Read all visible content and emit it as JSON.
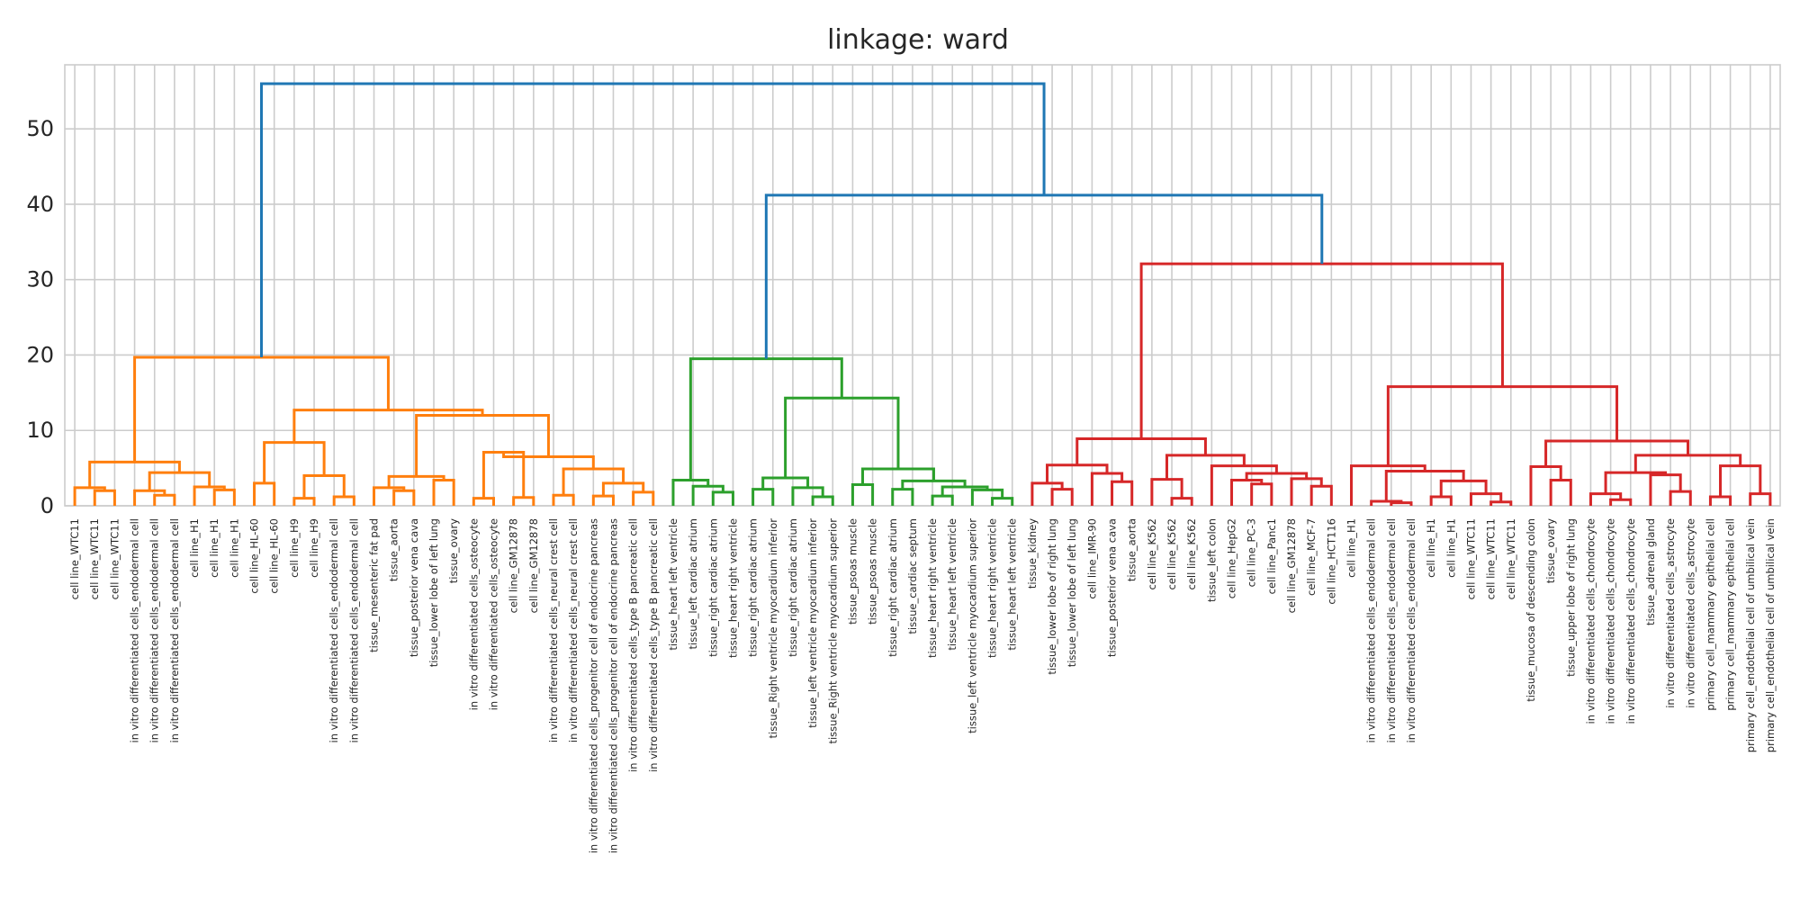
{
  "chart_data": {
    "type": "dendrogram",
    "title": "linkage: ward",
    "xlabel": "",
    "ylabel": "",
    "ylim": [
      0,
      58.5
    ],
    "yticks": [
      0,
      10,
      20,
      30,
      40,
      50
    ],
    "grid": true,
    "colors": {
      "orange": "#ff7f0e",
      "green": "#2ca02c",
      "red": "#d62728",
      "blue": "#1f77b4"
    },
    "leaves": [
      "cell line_WTC11",
      "cell line_WTC11",
      "cell line_WTC11",
      "in vitro differentiated cells_endodermal cell",
      "in vitro differentiated cells_endodermal cell",
      "in vitro differentiated cells_endodermal cell",
      "cell line_H1",
      "cell line_H1",
      "cell line_H1",
      "cell line_HL-60",
      "cell line_HL-60",
      "cell line_H9",
      "cell line_H9",
      "in vitro differentiated cells_endodermal cell",
      "in vitro differentiated cells_endodermal cell",
      "tissue_mesenteric fat pad",
      "tissue_aorta",
      "tissue_posterior vena cava",
      "tissue_lower lobe of left lung",
      "tissue_ovary",
      "in vitro differentiated cells_osteocyte",
      "in vitro differentiated cells_osteocyte",
      "cell line_GM12878",
      "cell line_GM12878",
      "in vitro differentiated cells_neural crest cell",
      "in vitro differentiated cells_neural crest cell",
      "in vitro differentiated cells_progenitor cell of endocrine pancreas",
      "in vitro differentiated cells_progenitor cell of endocrine pancreas",
      "in vitro differentiated cells_type B pancreatic cell",
      "in vitro differentiated cells_type B pancreatic cell",
      "tissue_heart left ventricle",
      "tissue_left cardiac atrium",
      "tissue_right cardiac atrium",
      "tissue_heart right ventricle",
      "tissue_right cardiac atrium",
      "tissue_Right ventricle myocardium inferior",
      "tissue_right cardiac atrium",
      "tissue_left ventricle myocardium inferior",
      "tissue_Right ventricle myocardium superior",
      "tissue_psoas muscle",
      "tissue_psoas muscle",
      "tissue_right cardiac atrium",
      "tissue_cardiac septum",
      "tissue_heart right ventricle",
      "tissue_heart left ventricle",
      "tissue_left ventricle myocardium superior",
      "tissue_heart right ventricle",
      "tissue_heart left ventricle",
      "tissue_kidney",
      "tissue_lower lobe of right lung",
      "tissue_lower lobe of left lung",
      "cell line_IMR-90",
      "tissue_posterior vena cava",
      "tissue_aorta",
      "cell line_K562",
      "cell line_K562",
      "cell line_K562",
      "tissue_left colon",
      "cell line_HepG2",
      "cell line_PC-3",
      "cell line_Panc1",
      "cell line_GM12878",
      "cell line_MCF-7",
      "cell line_HCT116",
      "cell line_H1",
      "in vitro differentiated cells_endodermal cell",
      "in vitro differentiated cells_endodermal cell",
      "in vitro differentiated cells_endodermal cell",
      "cell line_H1",
      "cell line_H1",
      "cell line_WTC11",
      "cell line_WTC11",
      "cell line_WTC11",
      "tissue_mucosa of descending colon",
      "tissue_ovary",
      "tissue_upper lobe of right lung",
      "in vitro differentiated cells_chondrocyte",
      "in vitro differentiated cells_chondrocyte",
      "in vitro differentiated cells_chondrocyte",
      "tissue_adrenal gland",
      "in vitro differentiated cells_astrocyte",
      "in vitro differentiated cells_astrocyte",
      "primary cell_mammary epithelial cell",
      "primary cell_mammary epithelial cell",
      "primary cell_endothelial cell of umbilical vein",
      "primary cell_endothelial cell of umbilical vein"
    ],
    "merges": [
      {
        "a": 1,
        "b": 2,
        "h": 2.0,
        "color": "orange"
      },
      {
        "a": 0,
        "b": "L0",
        "h": 2.4,
        "color": "orange"
      },
      {
        "a": 4,
        "b": 5,
        "h": 1.4,
        "color": "orange"
      },
      {
        "a": 3,
        "b": "L2",
        "h": 2.0,
        "color": "orange"
      },
      {
        "a": 7,
        "b": 8,
        "h": 2.1,
        "color": "orange"
      },
      {
        "a": 6,
        "b": "L4",
        "h": 2.5,
        "color": "orange"
      },
      {
        "a": "L3",
        "b": "L5",
        "h": 4.4,
        "color": "orange"
      },
      {
        "a": "L1",
        "b": "L6",
        "h": 5.8,
        "color": "orange"
      },
      {
        "a": 9,
        "b": 10,
        "h": 3.0,
        "color": "orange"
      },
      {
        "a": 11,
        "b": 12,
        "h": 1.0,
        "color": "orange"
      },
      {
        "a": 13,
        "b": 14,
        "h": 1.2,
        "color": "orange"
      },
      {
        "a": "L9",
        "b": "L10",
        "h": 4.0,
        "color": "orange"
      },
      {
        "a": "L8",
        "b": "L11",
        "h": 8.4,
        "color": "orange"
      },
      {
        "a": 16,
        "b": 17,
        "h": 2.0,
        "color": "orange"
      },
      {
        "a": 15,
        "b": "L13",
        "h": 2.4,
        "color": "orange"
      },
      {
        "a": 18,
        "b": 19,
        "h": 3.4,
        "color": "orange"
      },
      {
        "a": "L14",
        "b": "L15",
        "h": 3.9,
        "color": "orange"
      },
      {
        "a": 20,
        "b": 21,
        "h": 1.0,
        "color": "orange"
      },
      {
        "a": 22,
        "b": 23,
        "h": 1.1,
        "color": "orange"
      },
      {
        "a": "L17",
        "b": "L18",
        "h": 7.1,
        "color": "orange"
      },
      {
        "a": 24,
        "b": 25,
        "h": 1.4,
        "color": "orange"
      },
      {
        "a": 26,
        "b": 27,
        "h": 1.3,
        "color": "orange"
      },
      {
        "a": 28,
        "b": 29,
        "h": 1.8,
        "color": "orange"
      },
      {
        "a": "L21",
        "b": "L22",
        "h": 3.0,
        "color": "orange"
      },
      {
        "a": "L20",
        "b": "L23",
        "h": 4.9,
        "color": "orange"
      },
      {
        "a": "L19",
        "b": "L24",
        "h": 6.5,
        "color": "orange"
      },
      {
        "a": "L16",
        "b": "L25",
        "h": 12.0,
        "color": "orange"
      },
      {
        "a": "L12",
        "b": "L26",
        "h": 12.7,
        "color": "orange"
      },
      {
        "a": "L7",
        "b": "L27",
        "h": 19.7,
        "color": "orange"
      },
      {
        "a": 32,
        "b": 33,
        "h": 1.8,
        "color": "green"
      },
      {
        "a": 31,
        "b": "L29",
        "h": 2.6,
        "color": "green"
      },
      {
        "a": 30,
        "b": "L30",
        "h": 3.4,
        "color": "green"
      },
      {
        "a": 34,
        "b": 35,
        "h": 2.2,
        "color": "green"
      },
      {
        "a": 37,
        "b": 38,
        "h": 1.2,
        "color": "green"
      },
      {
        "a": 36,
        "b": "L33",
        "h": 2.4,
        "color": "green"
      },
      {
        "a": "L32",
        "b": "L34",
        "h": 3.7,
        "color": "green"
      },
      {
        "a": 39,
        "b": 40,
        "h": 2.8,
        "color": "green"
      },
      {
        "a": 41,
        "b": 42,
        "h": 2.2,
        "color": "green"
      },
      {
        "a": 43,
        "b": 44,
        "h": 1.3,
        "color": "green"
      },
      {
        "a": 46,
        "b": 47,
        "h": 1.0,
        "color": "green"
      },
      {
        "a": 45,
        "b": "L39",
        "h": 2.1,
        "color": "green"
      },
      {
        "a": "L38",
        "b": "L40",
        "h": 2.5,
        "color": "green"
      },
      {
        "a": "L37",
        "b": "L41",
        "h": 3.3,
        "color": "green"
      },
      {
        "a": "L36",
        "b": "L42",
        "h": 4.9,
        "color": "green"
      },
      {
        "a": "L35",
        "b": "L43",
        "h": 14.3,
        "color": "green"
      },
      {
        "a": "L31",
        "b": "L44",
        "h": 19.5,
        "color": "green"
      },
      {
        "a": 49,
        "b": 50,
        "h": 2.2,
        "color": "red"
      },
      {
        "a": 48,
        "b": "L46",
        "h": 3.0,
        "color": "red"
      },
      {
        "a": 52,
        "b": 53,
        "h": 3.2,
        "color": "red"
      },
      {
        "a": 51,
        "b": "L48",
        "h": 4.3,
        "color": "red"
      },
      {
        "a": "L47",
        "b": "L49",
        "h": 5.4,
        "color": "red"
      },
      {
        "a": 55,
        "b": 56,
        "h": 1.0,
        "color": "red"
      },
      {
        "a": 54,
        "b": "L51",
        "h": 3.5,
        "color": "red"
      },
      {
        "a": 59,
        "b": 60,
        "h": 2.9,
        "color": "red"
      },
      {
        "a": 58,
        "b": "L53",
        "h": 3.4,
        "color": "red"
      },
      {
        "a": 62,
        "b": 63,
        "h": 2.6,
        "color": "red"
      },
      {
        "a": 61,
        "b": "L55",
        "h": 3.6,
        "color": "red"
      },
      {
        "a": "L54",
        "b": "L56",
        "h": 4.3,
        "color": "red"
      },
      {
        "a": 57,
        "b": "L57",
        "h": 5.3,
        "color": "red"
      },
      {
        "a": "L52",
        "b": "L58",
        "h": 6.7,
        "color": "red"
      },
      {
        "a": "L50",
        "b": "L59",
        "h": 8.9,
        "color": "red"
      },
      {
        "a": 66,
        "b": 67,
        "h": 0.4,
        "color": "red"
      },
      {
        "a": 65,
        "b": "L61",
        "h": 0.6,
        "color": "red"
      },
      {
        "a": 68,
        "b": 69,
        "h": 1.2,
        "color": "red"
      },
      {
        "a": 71,
        "b": 72,
        "h": 0.5,
        "color": "red"
      },
      {
        "a": 70,
        "b": "L64",
        "h": 1.6,
        "color": "red"
      },
      {
        "a": "L63",
        "b": "L65",
        "h": 3.3,
        "color": "red"
      },
      {
        "a": "L62",
        "b": "L66",
        "h": 4.6,
        "color": "red"
      },
      {
        "a": 64,
        "b": "L67",
        "h": 5.3,
        "color": "red"
      },
      {
        "a": 74,
        "b": 75,
        "h": 3.4,
        "color": "red"
      },
      {
        "a": 73,
        "b": "L69",
        "h": 5.2,
        "color": "red"
      },
      {
        "a": 77,
        "b": 78,
        "h": 0.8,
        "color": "red"
      },
      {
        "a": 76,
        "b": "L71",
        "h": 1.6,
        "color": "red"
      },
      {
        "a": 80,
        "b": 81,
        "h": 1.9,
        "color": "red"
      },
      {
        "a": 79,
        "b": "L73",
        "h": 4.1,
        "color": "red"
      },
      {
        "a": "L72",
        "b": "L74",
        "h": 4.4,
        "color": "red"
      },
      {
        "a": 82,
        "b": 83,
        "h": 1.2,
        "color": "red"
      },
      {
        "a": 84,
        "b": 85,
        "h": 1.6,
        "color": "red"
      },
      {
        "a": "L76",
        "b": "L77",
        "h": 5.3,
        "color": "red"
      },
      {
        "a": "L75",
        "b": "L78",
        "h": 6.7,
        "color": "red"
      },
      {
        "a": "L70",
        "b": "L79",
        "h": 8.6,
        "color": "red"
      },
      {
        "a": "L68",
        "b": "L80",
        "h": 15.8,
        "color": "red"
      },
      {
        "a": "L60",
        "b": "L81",
        "h": 32.1,
        "color": "red"
      },
      {
        "a": "L45",
        "b": "L82",
        "h": 41.2,
        "color": "blue"
      },
      {
        "a": "L28",
        "b": "L83",
        "h": 56.0,
        "color": "blue"
      }
    ]
  }
}
